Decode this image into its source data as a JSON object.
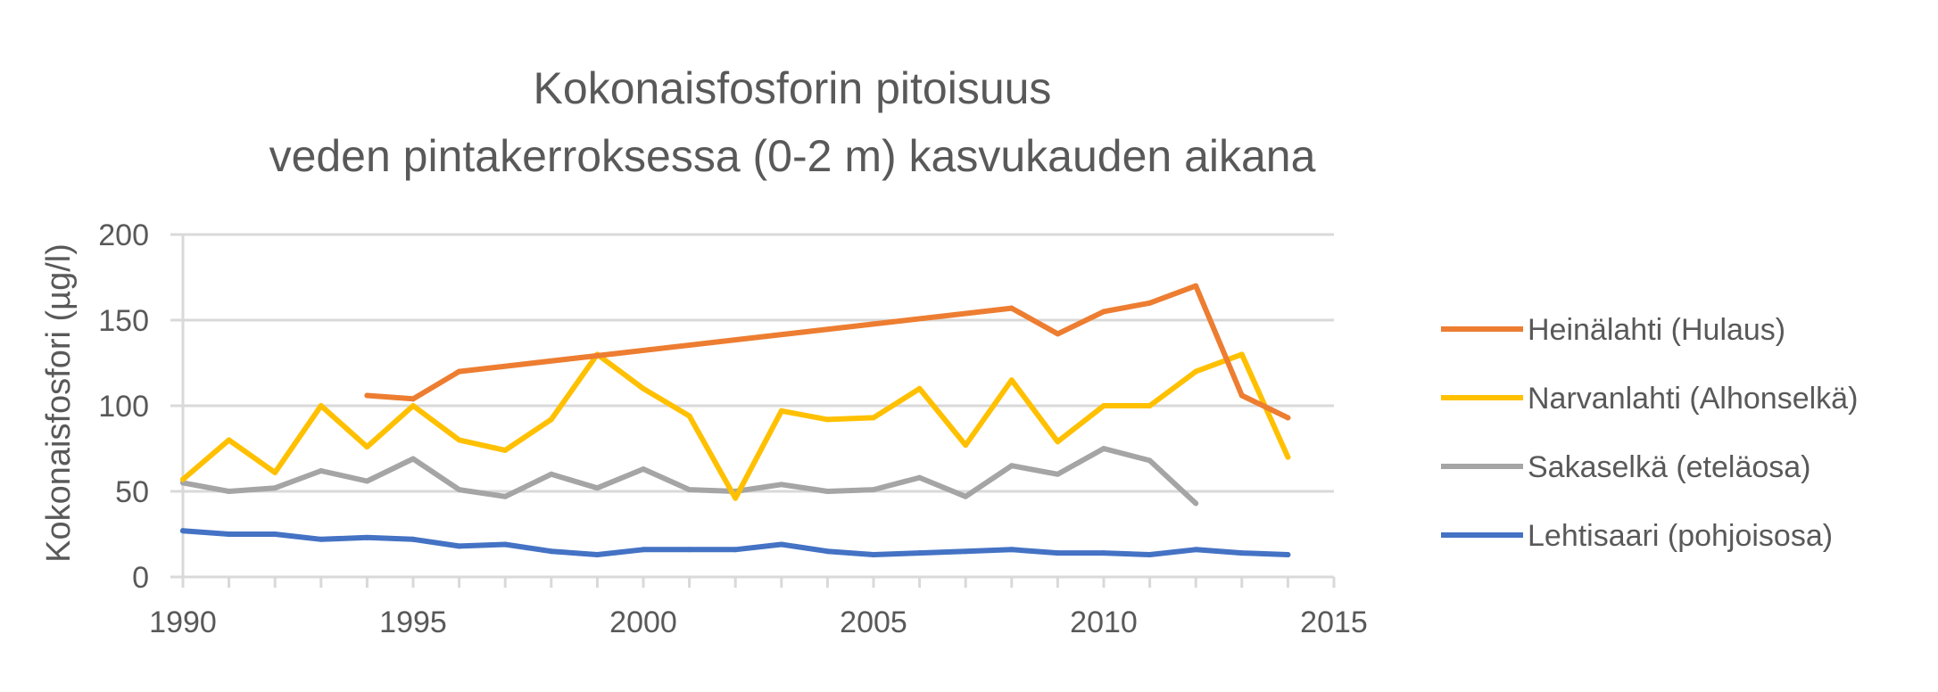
{
  "chart_data": {
    "type": "line",
    "title_lines": [
      "Kokonaisfosforin pitoisuus",
      "veden pintakerroksessa (0-2 m) kasvukauden aikana"
    ],
    "xlabel": "",
    "ylabel": "Kokonaisfosfori (µg/l)",
    "xlim": [
      1990,
      2015
    ],
    "ylim": [
      0,
      200
    ],
    "x_ticks": [
      "1990",
      "1995",
      "2000",
      "2005",
      "2010",
      "2015"
    ],
    "y_ticks": [
      "0",
      "50",
      "100",
      "150",
      "200"
    ],
    "grid": true,
    "legend_position": "right",
    "series": [
      {
        "name": "Heinälahti (Hulaus)",
        "color": "#ED7D31",
        "points": [
          [
            1994,
            106
          ],
          [
            1995,
            104
          ],
          [
            1996,
            120
          ],
          [
            2008,
            157
          ],
          [
            2009,
            142
          ],
          [
            2010,
            155
          ],
          [
            2011,
            160
          ],
          [
            2012,
            170
          ],
          [
            2013,
            106
          ],
          [
            2014,
            93
          ]
        ]
      },
      {
        "name": "Narvanlahti (Alhonselkä)",
        "color": "#FFC000",
        "points": [
          [
            1990,
            57
          ],
          [
            1991,
            80
          ],
          [
            1992,
            61
          ],
          [
            1993,
            100
          ],
          [
            1994,
            76
          ],
          [
            1995,
            100
          ],
          [
            1996,
            80
          ],
          [
            1997,
            74
          ],
          [
            1998,
            92
          ],
          [
            1999,
            130
          ],
          [
            2000,
            110
          ],
          [
            2001,
            94
          ],
          [
            2002,
            46
          ],
          [
            2003,
            97
          ],
          [
            2004,
            92
          ],
          [
            2005,
            93
          ],
          [
            2006,
            110
          ],
          [
            2007,
            77
          ],
          [
            2008,
            115
          ],
          [
            2009,
            79
          ],
          [
            2010,
            100
          ],
          [
            2011,
            100
          ],
          [
            2012,
            120
          ],
          [
            2013,
            130
          ],
          [
            2014,
            70
          ]
        ]
      },
      {
        "name": "Sakaselkä (eteläosa)",
        "color": "#A5A5A5",
        "points": [
          [
            1990,
            55
          ],
          [
            1991,
            50
          ],
          [
            1992,
            52
          ],
          [
            1993,
            62
          ],
          [
            1994,
            56
          ],
          [
            1995,
            69
          ],
          [
            1996,
            51
          ],
          [
            1997,
            47
          ],
          [
            1998,
            60
          ],
          [
            1999,
            52
          ],
          [
            2000,
            63
          ],
          [
            2001,
            51
          ],
          [
            2002,
            50
          ],
          [
            2003,
            54
          ],
          [
            2004,
            50
          ],
          [
            2005,
            51
          ],
          [
            2006,
            58
          ],
          [
            2007,
            47
          ],
          [
            2008,
            65
          ],
          [
            2009,
            60
          ],
          [
            2010,
            75
          ],
          [
            2011,
            68
          ],
          [
            2012,
            43
          ]
        ]
      },
      {
        "name": "Lehtisaari (pohjoisosa)",
        "color": "#4472C4",
        "points": [
          [
            1990,
            27
          ],
          [
            1991,
            25
          ],
          [
            1992,
            25
          ],
          [
            1993,
            22
          ],
          [
            1994,
            23
          ],
          [
            1995,
            22
          ],
          [
            1996,
            18
          ],
          [
            1997,
            19
          ],
          [
            1998,
            15
          ],
          [
            1999,
            13
          ],
          [
            2000,
            16
          ],
          [
            2001,
            16
          ],
          [
            2002,
            16
          ],
          [
            2003,
            19
          ],
          [
            2004,
            15
          ],
          [
            2005,
            13
          ],
          [
            2006,
            14
          ],
          [
            2007,
            15
          ],
          [
            2008,
            16
          ],
          [
            2009,
            14
          ],
          [
            2010,
            14
          ],
          [
            2011,
            13
          ],
          [
            2012,
            16
          ],
          [
            2013,
            14
          ],
          [
            2014,
            13
          ]
        ]
      }
    ]
  }
}
